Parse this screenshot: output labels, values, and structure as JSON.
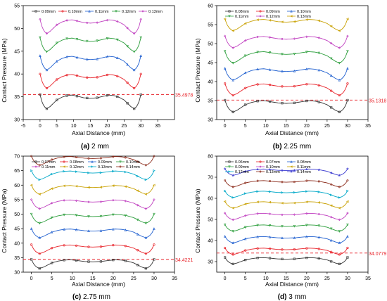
{
  "chart_data": [
    {
      "type": "line",
      "caption_letter": "(a)",
      "caption_text": " 2 mm",
      "xlabel": "Axial Distance (mm)",
      "ylabel": "Contact Pressure (MPa)",
      "xlim": [
        -5,
        40
      ],
      "ylim": [
        30,
        55
      ],
      "xticks": [
        -5,
        0,
        5,
        10,
        15,
        20,
        25,
        30,
        35
      ],
      "yticks": [
        30,
        35,
        40,
        45,
        50,
        55
      ],
      "grid": false,
      "legend_position": "top",
      "reference_line": {
        "y": 35.4978,
        "label": "35.4978"
      },
      "series": [
        {
          "name": "0.09mm",
          "base": 35.5,
          "color": "#333333",
          "marker": "square"
        },
        {
          "name": "0.10mm",
          "base": 40.0,
          "color": "#e8232a",
          "marker": "circle"
        },
        {
          "name": "0.11mm",
          "base": 44.0,
          "color": "#1f5fcf",
          "marker": "triangle"
        },
        {
          "name": "0.12mm",
          "base": 48.0,
          "color": "#2a9d3a",
          "marker": "triangle-down"
        },
        {
          "name": "0.13mm",
          "base": 52.0,
          "color": "#c040c0",
          "marker": "diamond"
        }
      ]
    },
    {
      "type": "line",
      "caption_letter": "(b)",
      "caption_text": " 2.25 mm",
      "xlabel": "Axial Distance (mm)",
      "ylabel": "Contact Pressure (MPa)",
      "xlim": [
        -2,
        35
      ],
      "ylim": [
        30,
        60
      ],
      "xticks": [
        0,
        5,
        10,
        15,
        20,
        25,
        30,
        35
      ],
      "yticks": [
        30,
        35,
        40,
        45,
        50,
        55,
        60
      ],
      "grid": false,
      "legend_position": "top",
      "reference_line": {
        "y": 35.1318,
        "label": "35.1318"
      },
      "series": [
        {
          "name": "0.08mm",
          "base": 35.1,
          "color": "#333333",
          "marker": "square"
        },
        {
          "name": "0.09mm",
          "base": 39.5,
          "color": "#e8232a",
          "marker": "circle"
        },
        {
          "name": "0.10mm",
          "base": 43.5,
          "color": "#1f5fcf",
          "marker": "triangle"
        },
        {
          "name": "0.11mm",
          "base": 48.0,
          "color": "#2a9d3a",
          "marker": "triangle-down"
        },
        {
          "name": "0.12mm",
          "base": 52.0,
          "color": "#c040c0",
          "marker": "diamond"
        },
        {
          "name": "0.13mm",
          "base": 56.5,
          "color": "#c8a000",
          "marker": "triangle-left"
        }
      ]
    },
    {
      "type": "line",
      "caption_letter": "(c)",
      "caption_text": " 2.75 mm",
      "xlabel": "Axial Distance (mm)",
      "ylabel": "Contact Pressure (MPa)",
      "xlim": [
        -2,
        35
      ],
      "ylim": [
        30,
        70
      ],
      "xticks": [
        0,
        5,
        10,
        15,
        20,
        25,
        30,
        35
      ],
      "yticks": [
        30,
        35,
        40,
        45,
        50,
        55,
        60,
        65,
        70
      ],
      "grid": false,
      "legend_position": "top",
      "reference_line": {
        "y": 34.4221,
        "label": "34.4221"
      },
      "series": [
        {
          "name": "0.07mm",
          "base": 34.4,
          "color": "#333333",
          "marker": "square"
        },
        {
          "name": "0.08mm",
          "base": 39.5,
          "color": "#e8232a",
          "marker": "circle"
        },
        {
          "name": "0.09mm",
          "base": 45.0,
          "color": "#1f5fcf",
          "marker": "triangle"
        },
        {
          "name": "0.10mm",
          "base": 50.0,
          "color": "#2a9d3a",
          "marker": "triangle-down"
        },
        {
          "name": "0.11mm",
          "base": 55.0,
          "color": "#c040c0",
          "marker": "diamond"
        },
        {
          "name": "0.12mm",
          "base": 60.0,
          "color": "#c8a000",
          "marker": "triangle-left"
        },
        {
          "name": "0.13mm",
          "base": 65.0,
          "color": "#00a8c8",
          "marker": "triangle-right"
        },
        {
          "name": "0.14mm",
          "base": 70.0,
          "color": "#8b2a1a",
          "marker": "hexagon"
        }
      ]
    },
    {
      "type": "line",
      "caption_letter": "(d)",
      "caption_text": " 3 mm",
      "xlabel": "Axial Distance (mm)",
      "ylabel": "Contact Pressure (MPa)",
      "xlim": [
        -2,
        35
      ],
      "ylim": [
        25,
        80
      ],
      "xticks": [
        0,
        5,
        10,
        15,
        20,
        25,
        30,
        35
      ],
      "yticks": [
        30,
        40,
        50,
        60,
        70,
        80
      ],
      "grid": false,
      "legend_position": "top",
      "reference_line": {
        "y": 34.0779,
        "label": "34.0779"
      },
      "series": [
        {
          "name": "0.06mm",
          "base": 32.0,
          "color": "#333333",
          "marker": "square"
        },
        {
          "name": "0.07mm",
          "base": 36.5,
          "color": "#e8232a",
          "marker": "circle"
        },
        {
          "name": "0.08mm",
          "base": 42.0,
          "color": "#1f5fcf",
          "marker": "triangle"
        },
        {
          "name": "0.09mm",
          "base": 47.5,
          "color": "#2a9d3a",
          "marker": "triangle-down"
        },
        {
          "name": "0.10mm",
          "base": 53.0,
          "color": "#c040c0",
          "marker": "diamond"
        },
        {
          "name": "0.11mm",
          "base": 58.5,
          "color": "#c8a000",
          "marker": "triangle-left"
        },
        {
          "name": "0.12mm",
          "base": 63.5,
          "color": "#00a8c8",
          "marker": "triangle-right"
        },
        {
          "name": "0.13mm",
          "base": 68.5,
          "color": "#8b2a1a",
          "marker": "hexagon"
        },
        {
          "name": "0.14mm",
          "base": 74.0,
          "color": "#3a3ad0",
          "marker": "star"
        }
      ]
    }
  ]
}
